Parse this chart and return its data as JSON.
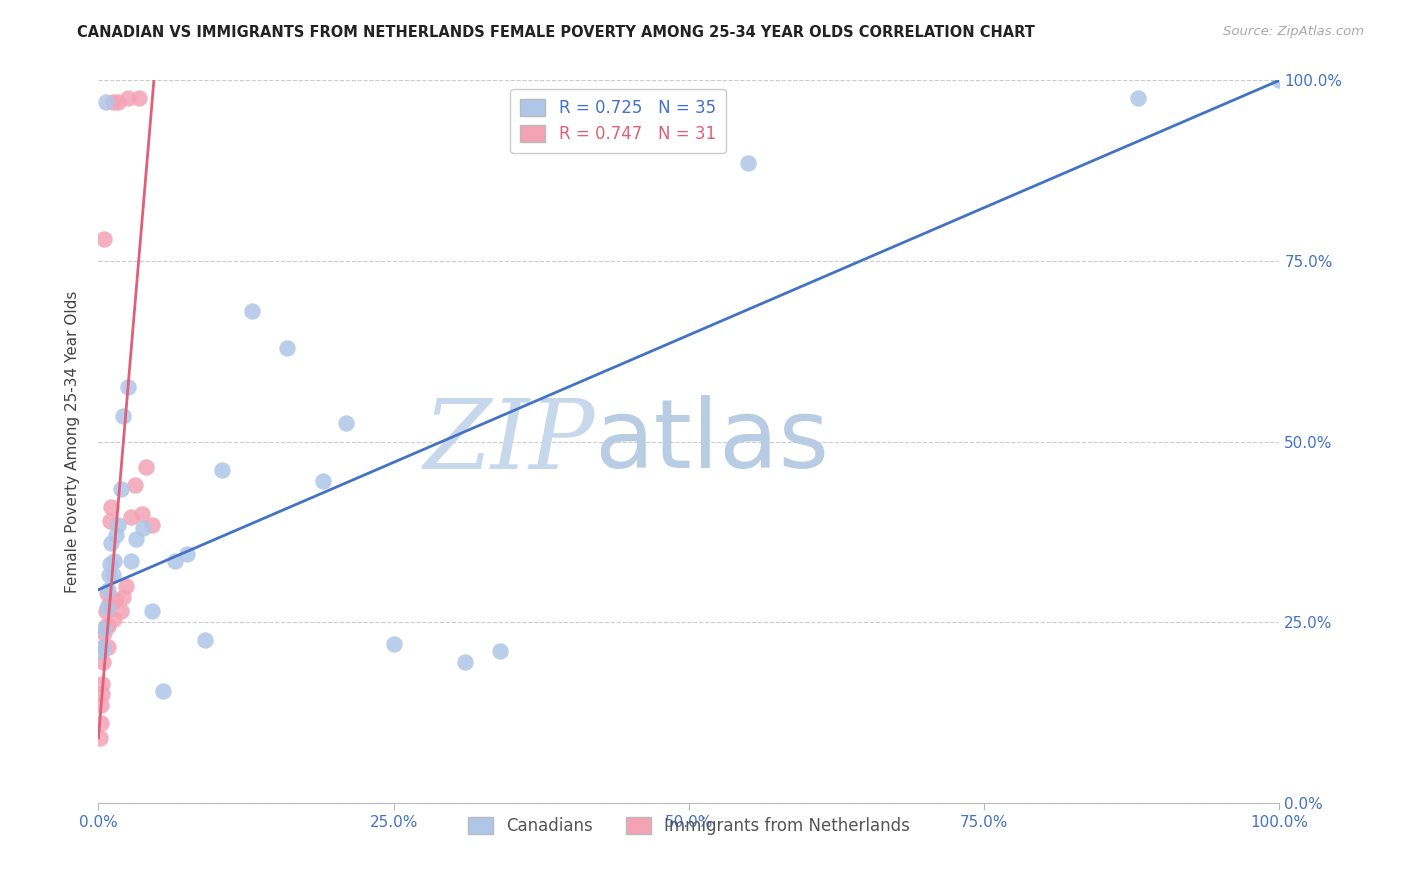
{
  "title": "CANADIAN VS IMMIGRANTS FROM NETHERLANDS FEMALE POVERTY AMONG 25-34 YEAR OLDS CORRELATION CHART",
  "source": "Source: ZipAtlas.com",
  "ylabel": "Female Poverty Among 25-34 Year Olds",
  "xlim": [
    0,
    1.0
  ],
  "ylim": [
    0,
    1.0
  ],
  "xticks": [
    0.0,
    0.25,
    0.5,
    0.75,
    1.0
  ],
  "yticks": [
    0.0,
    0.25,
    0.5,
    0.75,
    1.0
  ],
  "xtick_labels": [
    "0.0%",
    "25.0%",
    "50.0%",
    "75.0%",
    "100.0%"
  ],
  "ytick_labels": [
    "0.0%",
    "25.0%",
    "50.0%",
    "75.0%",
    "100.0%"
  ],
  "canadians_color": "#aec6e8",
  "netherlands_color": "#f4a3b5",
  "line_blue_color": "#4472c4",
  "line_pink_color": "#e0607a",
  "canadians_R": 0.725,
  "canadians_N": 35,
  "netherlands_R": 0.747,
  "netherlands_N": 31,
  "watermark_zip": "ZIP",
  "watermark_atlas": "atlas",
  "watermark_color_zip": "#c8d8ec",
  "watermark_color_atlas": "#b8cce4",
  "background_color": "#ffffff",
  "blue_line_x0": 0.0,
  "blue_line_y0": 0.295,
  "blue_line_x1": 1.0,
  "blue_line_y1": 1.0,
  "pink_line_x0": 0.0,
  "pink_line_y0": 0.09,
  "pink_line_x1": 0.048,
  "pink_line_y1": 1.02,
  "canadians_x": [
    0.003,
    0.004,
    0.005,
    0.006,
    0.007,
    0.008,
    0.009,
    0.01,
    0.011,
    0.012,
    0.013,
    0.015,
    0.017,
    0.019,
    0.021,
    0.025,
    0.028,
    0.032,
    0.038,
    0.045,
    0.055,
    0.065,
    0.075,
    0.09,
    0.105,
    0.13,
    0.16,
    0.19,
    0.21,
    0.25,
    0.31,
    0.34,
    0.55,
    0.88,
    1.0
  ],
  "canadians_y": [
    0.21,
    0.215,
    0.24,
    0.97,
    0.27,
    0.295,
    0.315,
    0.33,
    0.36,
    0.315,
    0.335,
    0.37,
    0.385,
    0.435,
    0.535,
    0.575,
    0.335,
    0.365,
    0.38,
    0.265,
    0.155,
    0.335,
    0.345,
    0.225,
    0.46,
    0.68,
    0.63,
    0.445,
    0.525,
    0.22,
    0.195,
    0.21,
    0.885,
    0.975,
    1.0
  ],
  "netherlands_x": [
    0.001,
    0.002,
    0.002,
    0.003,
    0.003,
    0.004,
    0.004,
    0.005,
    0.005,
    0.006,
    0.006,
    0.007,
    0.008,
    0.008,
    0.009,
    0.01,
    0.011,
    0.012,
    0.013,
    0.015,
    0.017,
    0.019,
    0.021,
    0.023,
    0.025,
    0.028,
    0.031,
    0.034,
    0.037,
    0.04,
    0.045
  ],
  "netherlands_y": [
    0.09,
    0.11,
    0.135,
    0.15,
    0.165,
    0.195,
    0.215,
    0.235,
    0.78,
    0.245,
    0.265,
    0.29,
    0.215,
    0.245,
    0.275,
    0.39,
    0.41,
    0.97,
    0.255,
    0.28,
    0.97,
    0.265,
    0.285,
    0.3,
    0.975,
    0.395,
    0.44,
    0.975,
    0.4,
    0.465,
    0.385
  ]
}
